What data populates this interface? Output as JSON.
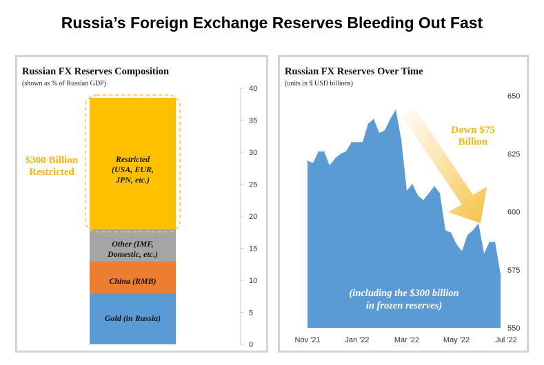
{
  "title": "Russia’s Foreign Exchange Reserves Bleeding Out Fast",
  "colors": {
    "gold": "#5b9bd5",
    "china": "#ed7d31",
    "other": "#a5a5a5",
    "restricted": "#ffc000",
    "line_area": "#5b9bd5",
    "annotation": "#f2b51b"
  },
  "chart_data": [
    {
      "type": "bar",
      "stacked": true,
      "title": "Russian FX Reserves Composition",
      "subtitle": "(shown as % of Russian GDP)",
      "ylim": [
        0,
        40
      ],
      "yticks": [
        "0",
        "5",
        "10",
        "15",
        "20",
        "25",
        "30",
        "35",
        "40"
      ],
      "segments": [
        {
          "name": "Gold (in Russia)",
          "value": 8.0
        },
        {
          "name": "China (RMB)",
          "value": 5.0
        },
        {
          "name": "Other (IMF, Domestic, etc.)",
          "value": 5.0
        },
        {
          "name": "Restricted (USA, EUR, JPN, etc.)",
          "value": 20.5
        }
      ],
      "labels": {
        "gold": "Gold (in Russia)",
        "china": "China (RMB)",
        "other_1": "Other (IMF,",
        "other_2": "Domestic, etc.)",
        "restricted_1": "Restricted",
        "restricted_2": "(USA, EUR,",
        "restricted_3": "JPN, etc.)"
      },
      "annotation": {
        "line1": "$300 Billion",
        "line2": "Restricted"
      }
    },
    {
      "type": "area",
      "title": "Russian FX Reserves Over Time",
      "subtitle": "(units in $ USD billions)",
      "ylim": [
        550,
        650
      ],
      "yticks": [
        "550",
        "575",
        "600",
        "625",
        "650"
      ],
      "xtick_labels": [
        "Nov '21",
        "Jan '22",
        "Mar '22",
        "May '22",
        "Jul '22"
      ],
      "xtick_positions": [
        0,
        9,
        18,
        27,
        36
      ],
      "x_count": 39,
      "values": [
        622,
        621,
        626,
        626,
        620,
        623,
        625,
        626,
        630,
        630,
        630,
        638,
        640,
        634,
        635,
        640,
        644,
        631,
        609,
        612,
        607,
        605,
        608,
        611,
        608,
        592,
        591,
        586,
        583,
        590,
        592,
        595,
        582,
        587,
        587,
        573
      ],
      "annotation_top": {
        "line1": "Down $75",
        "line2": "Billion"
      },
      "annotation_bottom": {
        "line1": "(including the $300 billion",
        "line2": "in frozen reserves)"
      }
    }
  ]
}
